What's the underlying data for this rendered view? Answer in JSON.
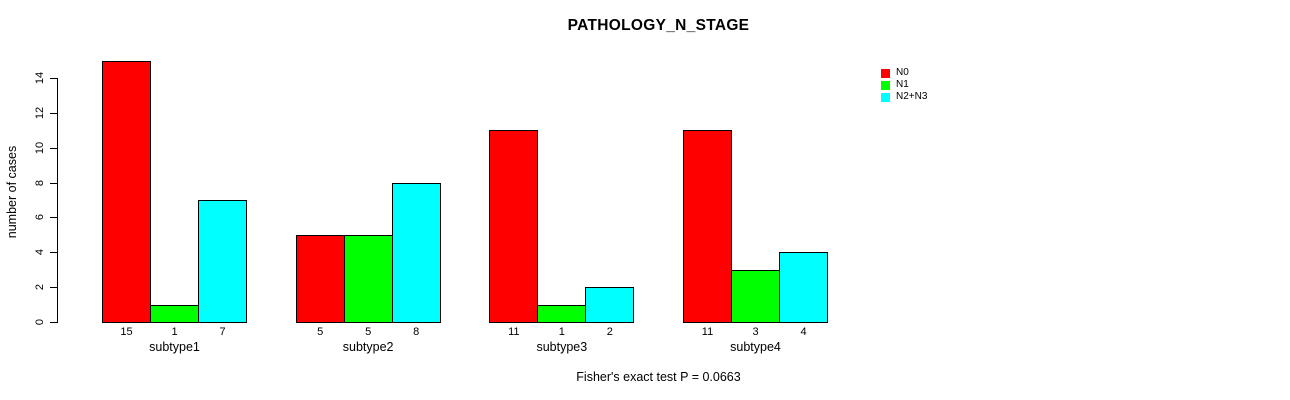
{
  "title": "PATHOLOGY_N_STAGE",
  "ylabel": "number of cases",
  "footer": "Fisher's exact test P = 0.0663",
  "legend": [
    {
      "label": "N0",
      "color": "#FF0000"
    },
    {
      "label": "N1",
      "color": "#00FF00"
    },
    {
      "label": "N2+N3",
      "color": "#00FFFF"
    }
  ],
  "chart_data": {
    "type": "bar",
    "title": "PATHOLOGY_N_STAGE",
    "xlabel": "",
    "ylabel": "number of cases",
    "categories": [
      "subtype1",
      "subtype2",
      "subtype3",
      "subtype4"
    ],
    "series": [
      {
        "name": "N0",
        "color": "#FF0000",
        "values": [
          15,
          5,
          11,
          11
        ]
      },
      {
        "name": "N1",
        "color": "#00FF00",
        "values": [
          1,
          5,
          1,
          3
        ]
      },
      {
        "name": "N2+N3",
        "color": "#00FFFF",
        "values": [
          7,
          8,
          2,
          4
        ]
      }
    ],
    "ylim": [
      0,
      14
    ],
    "yticks": [
      0,
      2,
      4,
      6,
      8,
      10,
      12,
      14
    ],
    "bar_value_labels_shown": true,
    "grid": false,
    "legend_position": "top-right",
    "annotation": "Fisher's exact test P = 0.0663"
  }
}
